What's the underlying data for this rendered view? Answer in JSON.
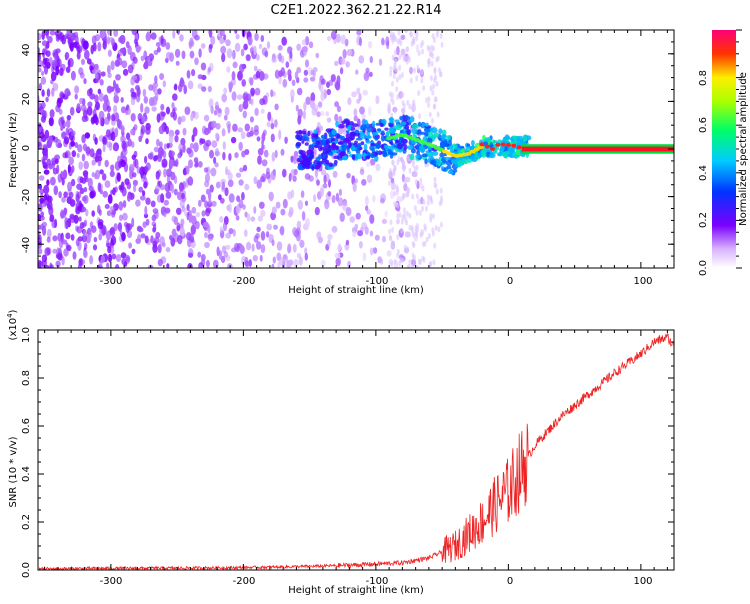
{
  "title": "C2E1.2022.362.21.22.R14",
  "colors": {
    "signal_low": "#6600ff",
    "signal_mid": "#00ff66",
    "signal_high": "#ff0033",
    "snr_line": "#ee2222",
    "axes": "#000000"
  },
  "chart_data": [
    {
      "type": "heatmap",
      "xlabel": "Height of straight line (km)",
      "ylabel": "Frequency (Hz)",
      "xlim": [
        -355,
        125
      ],
      "ylim": [
        -50,
        50
      ],
      "xticks": [
        -300,
        -200,
        -100,
        0,
        100
      ],
      "yticks": [
        -40,
        -20,
        0,
        20,
        40
      ],
      "colorbar": {
        "label": "Normalized spectral amplitude",
        "range": [
          0,
          1
        ],
        "ticks": [
          "0.0",
          "0.2",
          "0.4",
          "0.6",
          "0.8"
        ],
        "colormap": "rainbow (white → purple → blue → cyan → green → yellow → red → magenta)"
      },
      "features": {
        "noise_region_x": [
          -355,
          -80
        ],
        "signal_track": [
          {
            "x": -130,
            "y": 4
          },
          {
            "x": -100,
            "y": 3
          },
          {
            "x": -80,
            "y": 6
          },
          {
            "x": -60,
            "y": 2
          },
          {
            "x": -40,
            "y": -3
          },
          {
            "x": -30,
            "y": -2
          },
          {
            "x": -20,
            "y": 1
          },
          {
            "x": 0,
            "y": 1
          },
          {
            "x": 125,
            "y": 0
          }
        ],
        "steady_tone_start_x": 10,
        "steady_tone_freq": 0
      }
    },
    {
      "type": "line",
      "xlabel": "Height of straight line (km)",
      "ylabel": "SNR (10 * v/v)",
      "yscale_label": "(x10",
      "yscale_exp": "4",
      "yscale_close": ")",
      "xlim": [
        -355,
        125
      ],
      "ylim": [
        0,
        1.0
      ],
      "xticks": [
        -300,
        -200,
        -100,
        0,
        100
      ],
      "yticks": [
        "0.0",
        "0.2",
        "0.4",
        "0.6",
        "0.8",
        "1.0"
      ],
      "series": [
        {
          "x": [
            -355,
            -300,
            -250,
            -200,
            -150,
            -120,
            -100,
            -80,
            -60,
            -40,
            -30,
            -20,
            -10,
            0,
            10,
            20,
            40,
            60,
            80,
            100,
            110,
            120,
            125
          ],
          "y": [
            0.005,
            0.007,
            0.008,
            0.01,
            0.015,
            0.02,
            0.025,
            0.03,
            0.05,
            0.1,
            0.15,
            0.2,
            0.27,
            0.33,
            0.42,
            0.52,
            0.64,
            0.73,
            0.82,
            0.9,
            0.95,
            0.97,
            0.93
          ]
        }
      ]
    }
  ],
  "upper_tick_labels": {
    "x": [
      "-300",
      "-200",
      "-100",
      "0",
      "100"
    ],
    "y": [
      "40",
      "20",
      "0",
      "-20",
      "-40"
    ]
  },
  "lower_tick_labels": {
    "x": [
      "-300",
      "-200",
      "-100",
      "0",
      "100"
    ]
  }
}
